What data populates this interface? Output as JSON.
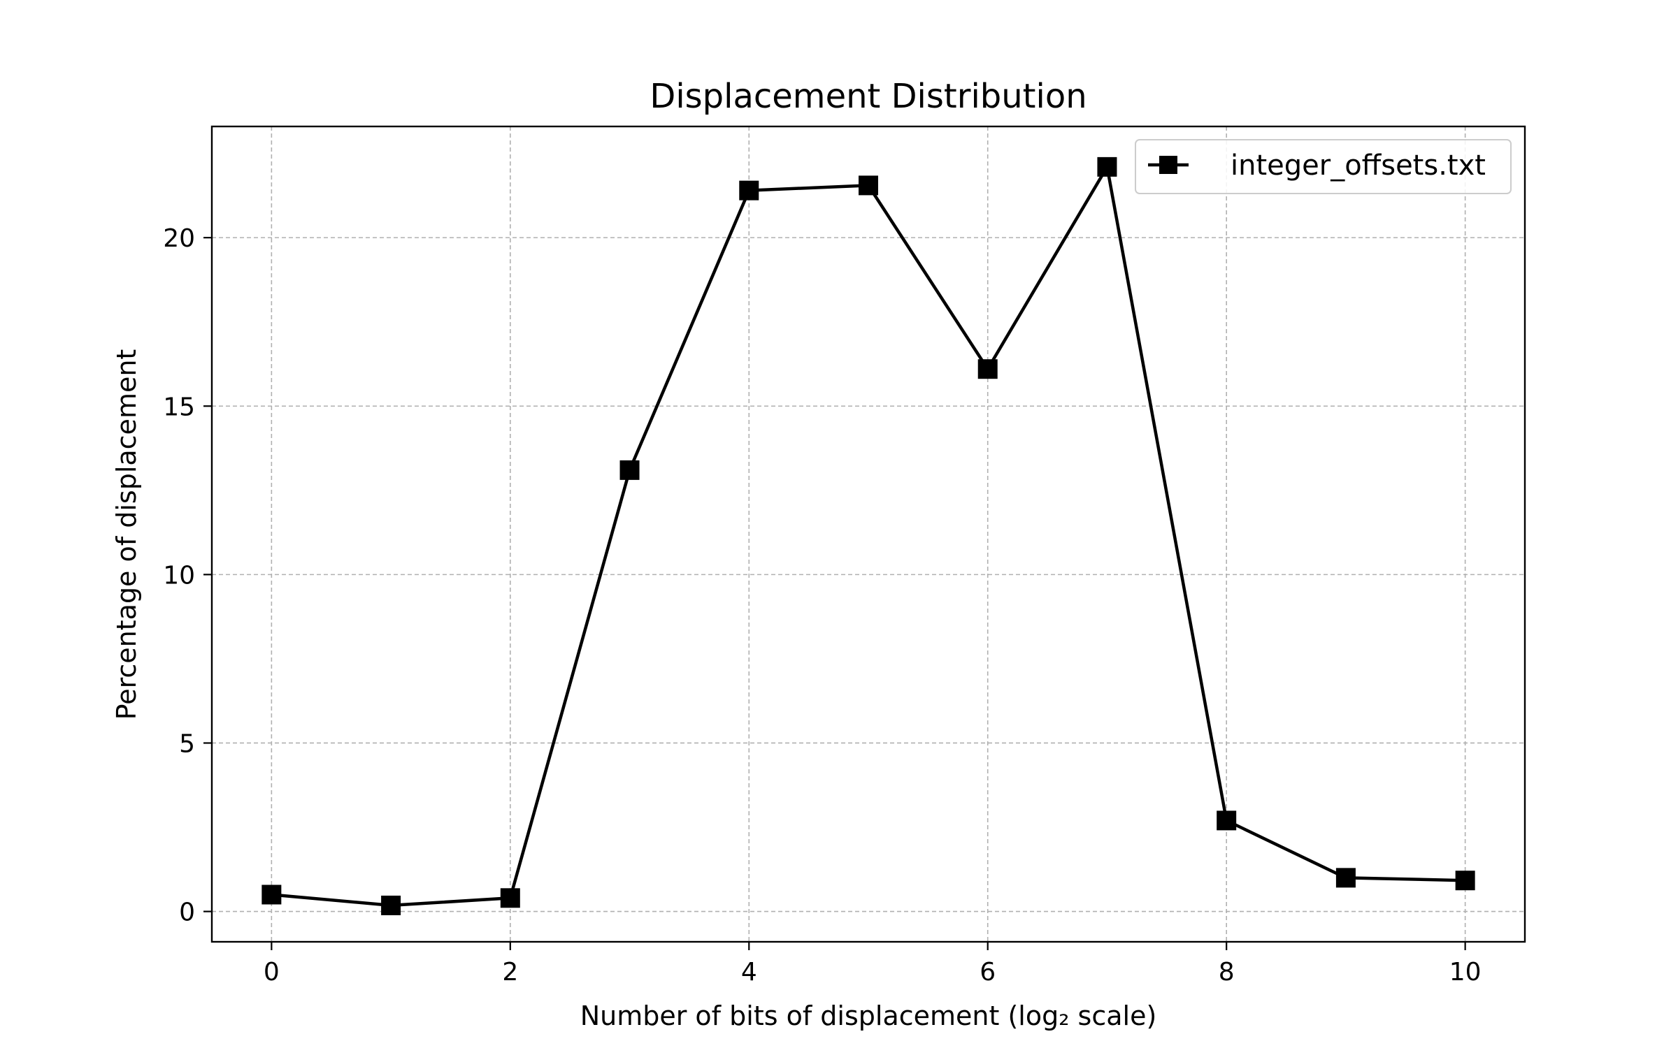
{
  "chart_data": {
    "type": "line",
    "title": "Displacement Distribution",
    "xlabel": "Number of bits of displacement (log₂ scale)",
    "ylabel": "Percentage of displacement",
    "xlim": [
      -0.5,
      10.5
    ],
    "ylim": [
      -0.9,
      23.3
    ],
    "xticks": [
      0,
      2,
      4,
      6,
      8,
      10
    ],
    "yticks": [
      0,
      5,
      10,
      15,
      20
    ],
    "grid": true,
    "legend_position": "top-right",
    "series": [
      {
        "name": "integer_offsets.txt",
        "color": "#000000",
        "marker": "square",
        "x": [
          0,
          1,
          2,
          3,
          4,
          5,
          6,
          7,
          8,
          9,
          10
        ],
        "values": [
          0.5,
          0.18,
          0.4,
          13.1,
          21.4,
          21.55,
          16.1,
          22.1,
          2.7,
          1.0,
          0.92
        ]
      }
    ]
  }
}
